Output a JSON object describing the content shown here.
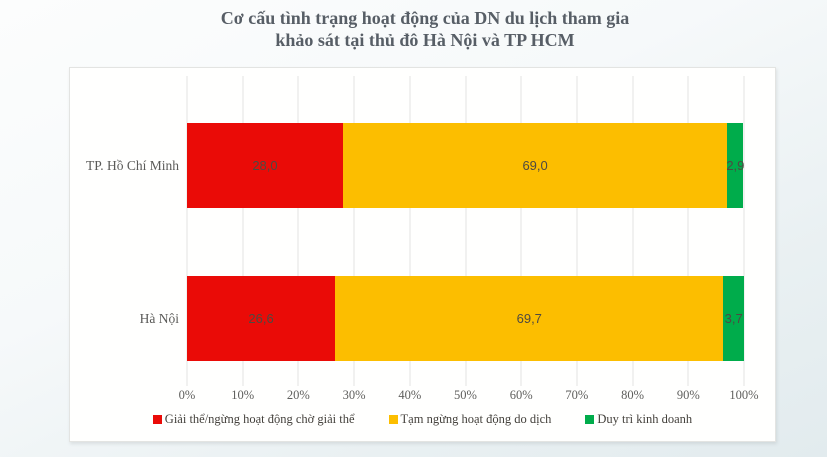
{
  "title": {
    "line1": "Cơ cấu tình trạng hoạt động của DN du lịch tham gia",
    "line2": "khảo sát tại thủ đô Hà Nội và TP HCM"
  },
  "chart_data": {
    "type": "bar",
    "orientation": "horizontal",
    "stacked": true,
    "title": "Cơ cấu tình trạng hoạt động của DN du lịch tham gia khảo sát tại thủ đô Hà Nội và TP HCM",
    "categories": [
      "TP. Hồ Chí Minh",
      "Hà Nội"
    ],
    "series": [
      {
        "name": "Giải thể/ngừng hoạt động chờ giải thể",
        "color": "#ea0b07",
        "values": [
          28.0,
          26.6
        ],
        "labels": [
          "28,0",
          "26,6"
        ]
      },
      {
        "name": "Tạm ngừng hoạt động do dịch",
        "color": "#fcbe00",
        "values": [
          69.0,
          69.7
        ],
        "labels": [
          "69,0",
          "69,7"
        ]
      },
      {
        "name": "Duy trì kinh doanh",
        "color": "#00ac4b",
        "values": [
          2.9,
          3.7
        ],
        "labels": [
          "2,9",
          "3,7"
        ]
      }
    ],
    "x_axis": {
      "min": 0,
      "max": 100,
      "ticks": [
        "0%",
        "10%",
        "20%",
        "30%",
        "40%",
        "50%",
        "60%",
        "70%",
        "80%",
        "90%",
        "100%"
      ]
    },
    "grid": true,
    "legend_position": "bottom"
  }
}
